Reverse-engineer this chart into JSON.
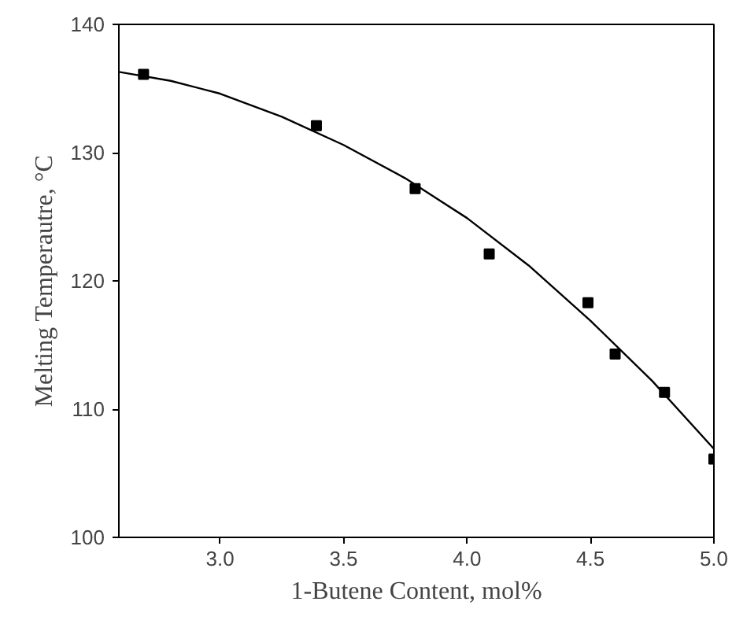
{
  "chart_data": {
    "type": "scatter",
    "xlabel": "1-Butene Content, mol%",
    "ylabel": "Melting Temperautre, °C",
    "xlim": [
      2.59,
      5.0
    ],
    "ylim": [
      100,
      140
    ],
    "xticks": [
      {
        "value": 3,
        "label": "3.0"
      },
      {
        "value": 3.5,
        "label": "3.5"
      },
      {
        "value": 4,
        "label": "4.0"
      },
      {
        "value": 4.5,
        "label": "4.5"
      },
      {
        "value": 5,
        "label": "5.0"
      }
    ],
    "yticks": [
      100,
      110,
      120,
      130,
      140
    ],
    "grid": false,
    "series": [
      {
        "marker": "square",
        "color": "#000000",
        "x": [
          2.69,
          3.39,
          3.79,
          4.09,
          4.49,
          4.6,
          4.8,
          5.0
        ],
        "values": [
          136.1,
          132.1,
          127.2,
          122.1,
          118.3,
          114.3,
          111.3,
          106.1
        ]
      },
      {
        "type": "line",
        "marker": "none",
        "line_style": "solid",
        "color": "#000000",
        "x": [
          2.59,
          2.8,
          3.0,
          3.25,
          3.5,
          3.75,
          4.0,
          4.25,
          4.5,
          4.75,
          5.0
        ],
        "values": [
          136.3,
          135.6,
          134.6,
          132.8,
          130.6,
          128.0,
          124.9,
          121.2,
          116.9,
          112.2,
          106.9
        ]
      }
    ]
  }
}
